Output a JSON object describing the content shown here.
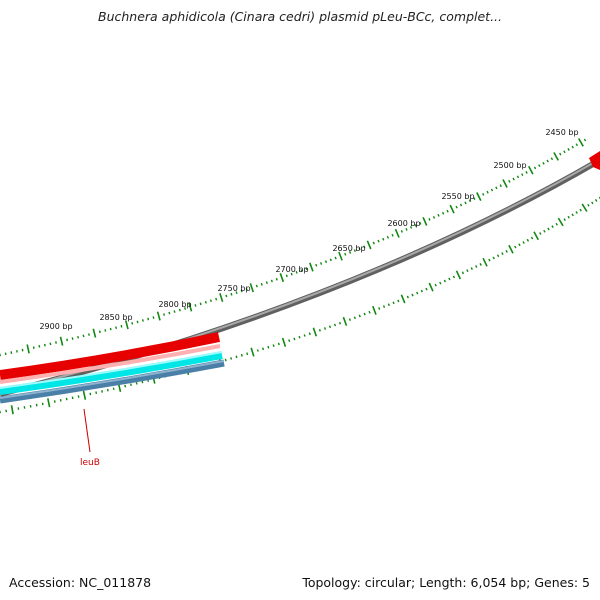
{
  "title": "Buchnera aphidicola (Cinara cedri) plasmid pLeu-BCc, complet...",
  "footer": {
    "accession": "Accession: NC_011878",
    "summary": "Topology: circular; Length: 6,054 bp; Genes: 5"
  },
  "ticks": [
    {
      "label": "2450 bp"
    },
    {
      "label": "2500 bp"
    },
    {
      "label": "2550 bp"
    },
    {
      "label": "2600 bp"
    },
    {
      "label": "2650 bp"
    },
    {
      "label": "2700 bp"
    },
    {
      "label": "2750 bp"
    },
    {
      "label": "2800 bp"
    },
    {
      "label": "2850 bp"
    },
    {
      "label": "2900 bp"
    }
  ],
  "genes": [
    {
      "name": "leuB"
    }
  ],
  "colors": {
    "backbone": "#808080",
    "gene_forward": "#ff0000",
    "gene_forward_light": "#ffb0b0",
    "track_cyan": "#00e6e6",
    "track_blue": "#4a7fa8",
    "tick": "#118811",
    "gene_label": "#cc0000"
  }
}
